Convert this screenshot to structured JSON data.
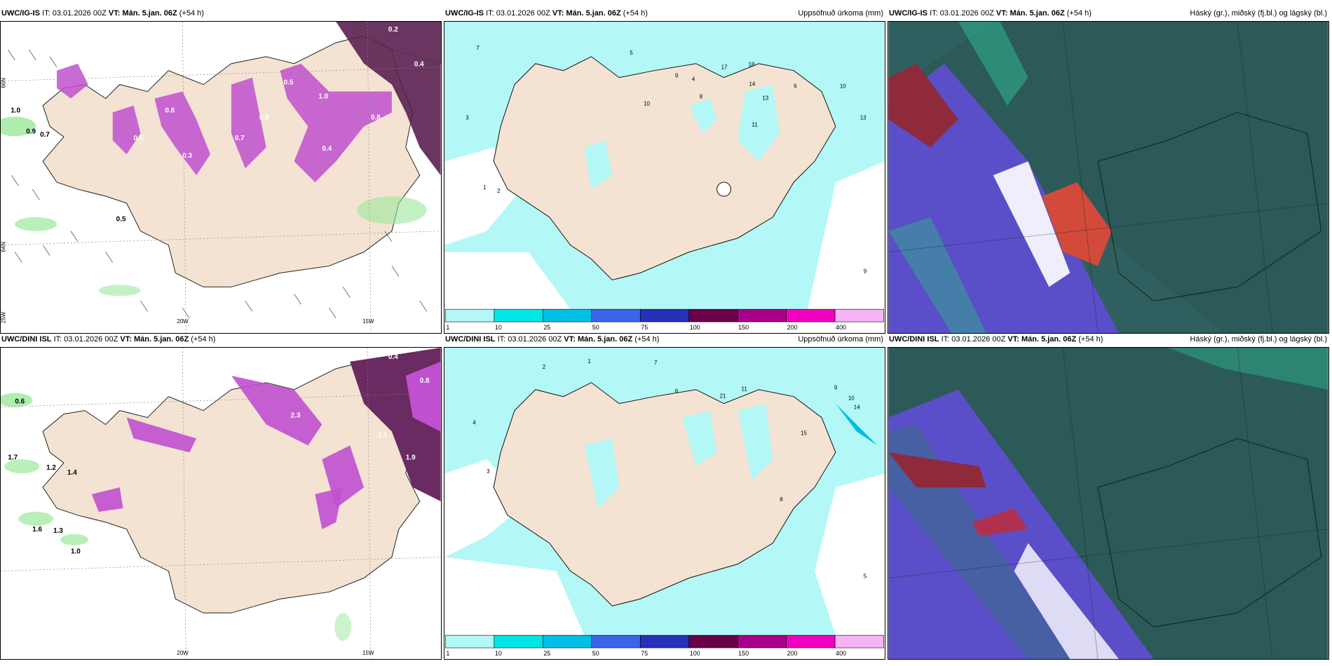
{
  "panels": [
    {
      "model": "UWC/IG-IS",
      "it_label": "IT:",
      "it": "03.01.2026 00Z",
      "vt_label": "VT:",
      "vt": "Mán. 5.jan. 06Z",
      "lead": "(+54 h)",
      "right": ""
    },
    {
      "model": "UWC/IG-IS",
      "it_label": "IT:",
      "it": "03.01.2026 00Z",
      "vt_label": "VT:",
      "vt": "Mán. 5.jan. 06Z",
      "lead": "(+54 h)",
      "right": "Uppsöfnuð úrkoma (mm)"
    },
    {
      "model": "UWC/IG-IS",
      "it_label": "IT:",
      "it": "03.01.2026 00Z",
      "vt_label": "VT:",
      "vt": "Mán. 5.jan. 06Z",
      "lead": "(+54 h)",
      "right": "Háský (gr.), miðský (fj.bl.) og lágský (bl.)"
    },
    {
      "model": "UWC/DINI ISL",
      "it_label": "IT:",
      "it": "03.01.2026 00Z",
      "vt_label": "VT:",
      "vt": "Mán. 5.jan. 06Z",
      "lead": "(+54 h)",
      "right": ""
    },
    {
      "model": "UWC/DINI ISL",
      "it_label": "IT:",
      "it": "03.01.2026 00Z",
      "vt_label": "VT:",
      "vt": "Mán. 5.jan. 06Z",
      "lead": "(+54 h)",
      "right": "Uppsöfnuð úrkoma (mm)"
    },
    {
      "model": "UWC/DINI ISL",
      "it_label": "IT:",
      "it": "03.01.2026 00Z",
      "vt_label": "VT:",
      "vt": "Mán. 5.jan. 06Z",
      "lead": "(+54 h)",
      "right": "Háský (gr.), miðský (fj.bl.) og lágský (bl.)"
    }
  ],
  "grid_labels": {
    "lon1": "20W",
    "lon2": "15W",
    "lat1": "66N",
    "lat2": "64N",
    "lon3": "25W"
  },
  "colorbar": {
    "ticks": [
      "1",
      "10",
      "25",
      "50",
      "75",
      "100",
      "150",
      "200",
      "400"
    ],
    "colors": [
      "#b4f7f7",
      "#00e6e6",
      "#00bfe6",
      "#3b64e6",
      "#2630b8",
      "#6a0048",
      "#a8008a",
      "#f000c0",
      "#f5b4f5"
    ]
  },
  "colors": {
    "land": "#f4e3d2",
    "precip_light": "#b4f7f7",
    "snow": "#c050d0",
    "cloud_low": "#2a6f7a",
    "cloud_mid": "#5a4fc8",
    "cloud_high": "#d13d3d"
  },
  "labels": {
    "p1": [
      "0.9",
      "0.2",
      "0.4",
      "0.5",
      "0.6",
      "1.0",
      "0.7",
      "0.8",
      "0.4",
      "0.3",
      "0.5",
      "0.6",
      "1.0",
      "0.9",
      "0.7",
      "0.5"
    ],
    "p2": [
      "7",
      "5",
      "9",
      "4",
      "8",
      "10",
      "17",
      "18",
      "14",
      "13",
      "11",
      "6",
      "3",
      "2",
      "1",
      "10",
      "9",
      "13"
    ],
    "p4": [
      "0.4",
      "0.8",
      "1.7",
      "0.6",
      "1.2",
      "1.4",
      "1.6",
      "1.3",
      "1.0",
      "2.3",
      "1.1",
      "1.9"
    ],
    "p5": [
      "2",
      "1",
      "7",
      "21",
      "11",
      "10",
      "14",
      "9",
      "5",
      "6",
      "4",
      "3",
      "15",
      "8"
    ]
  }
}
